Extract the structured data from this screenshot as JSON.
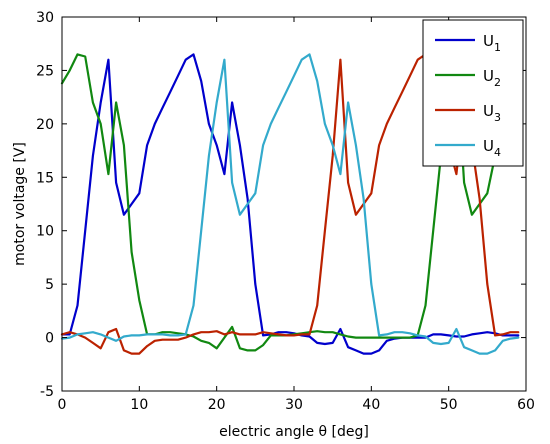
{
  "chart_data": {
    "type": "line",
    "title": "",
    "xlabel": "electric angle θ [deg]",
    "ylabel": "motor voltage [V]",
    "xlim": [
      0,
      60
    ],
    "ylim": [
      -5,
      30
    ],
    "xticks": [
      0,
      10,
      20,
      30,
      40,
      50,
      60
    ],
    "yticks": [
      -5,
      0,
      5,
      10,
      15,
      20,
      25,
      30
    ],
    "grid": false,
    "legend_position": "top-right",
    "series": [
      {
        "name": "U",
        "subscript": "1",
        "color": "#0000cc",
        "x": [
          0,
          1,
          2,
          3,
          4,
          5,
          6,
          7,
          8,
          9,
          10,
          11,
          12,
          13,
          14,
          15,
          16,
          17,
          18,
          19,
          20,
          21,
          22,
          23,
          24,
          25,
          26,
          27,
          28,
          29,
          30,
          31,
          32,
          33,
          34,
          35,
          36,
          37,
          38,
          39,
          40,
          41,
          42,
          43,
          44,
          45,
          46,
          47,
          48,
          49,
          50,
          51,
          52,
          53,
          54,
          55,
          56,
          57,
          58,
          59
        ],
        "y": [
          0.3,
          0.3,
          3,
          10,
          17,
          22,
          26,
          14.5,
          11.5,
          12.5,
          13.5,
          18,
          20,
          21.5,
          23,
          24.5,
          26,
          26.5,
          24,
          20,
          18,
          15.3,
          22,
          18,
          13,
          5,
          0.2,
          0.3,
          0.5,
          0.5,
          0.4,
          0.2,
          0.1,
          -0.5,
          -0.6,
          -0.5,
          0.8,
          -0.9,
          -1.2,
          -1.5,
          -1.5,
          -1.2,
          -0.3,
          -0.1,
          0,
          0,
          0,
          0,
          0.3,
          0.3,
          0.2,
          0.1,
          0.1,
          0.3,
          0.4,
          0.5,
          0.4,
          0.2,
          0.2,
          0.2
        ]
      },
      {
        "name": "U",
        "subscript": "2",
        "color": "#118811",
        "x": [
          0,
          1,
          2,
          3,
          4,
          5,
          6,
          7,
          8,
          9,
          10,
          11,
          12,
          13,
          14,
          15,
          16,
          17,
          18,
          19,
          20,
          21,
          22,
          23,
          24,
          25,
          26,
          27,
          28,
          29,
          30,
          31,
          32,
          33,
          34,
          35,
          36,
          37,
          38,
          39,
          40,
          41,
          42,
          43,
          44,
          45,
          46,
          47,
          48,
          49,
          50,
          51,
          52,
          53,
          54,
          55,
          56,
          57,
          58,
          59
        ],
        "y": [
          23.8,
          25,
          26.5,
          26.3,
          22,
          20,
          15.3,
          22,
          18,
          8,
          3.5,
          0.3,
          0.3,
          0.5,
          0.5,
          0.4,
          0.3,
          0.1,
          -0.3,
          -0.5,
          -1,
          0,
          1,
          -1,
          -1.2,
          -1.2,
          -0.7,
          0.2,
          0.2,
          0.2,
          0.3,
          0.4,
          0.5,
          0.6,
          0.5,
          0.5,
          0.3,
          0.1,
          0,
          0,
          0,
          0,
          0,
          0,
          0,
          0,
          0.2,
          3,
          10,
          17,
          22,
          26,
          14.5,
          11.5,
          12.5,
          13.5,
          17,
          19,
          21,
          22
        ]
      },
      {
        "name": "U",
        "subscript": "3",
        "color": "#bb2200",
        "x": [
          0,
          1,
          2,
          3,
          4,
          5,
          6,
          7,
          8,
          9,
          10,
          11,
          12,
          13,
          14,
          15,
          16,
          17,
          18,
          19,
          20,
          21,
          22,
          23,
          24,
          25,
          26,
          27,
          28,
          29,
          30,
          31,
          32,
          33,
          34,
          35,
          36,
          37,
          38,
          39,
          40,
          41,
          42,
          43,
          44,
          45,
          46,
          47,
          48,
          49,
          50,
          51,
          52,
          53,
          54,
          55,
          56,
          57,
          58,
          59
        ],
        "y": [
          0.3,
          0.5,
          0.3,
          0,
          -0.5,
          -1,
          0.5,
          0.8,
          -1.2,
          -1.5,
          -1.5,
          -0.8,
          -0.3,
          -0.2,
          -0.2,
          -0.2,
          0,
          0.3,
          0.5,
          0.5,
          0.6,
          0.3,
          0.5,
          0.3,
          0.3,
          0.3,
          0.5,
          0.4,
          0.3,
          0.2,
          0.2,
          0.3,
          0.3,
          3,
          10,
          17,
          26,
          14.5,
          11.5,
          12.5,
          13.5,
          18,
          20,
          21.5,
          23,
          24.5,
          26,
          26.5,
          24,
          20,
          18,
          15.3,
          22,
          18,
          13,
          5,
          0.2,
          0.3,
          0.5,
          0.5
        ]
      },
      {
        "name": "U",
        "subscript": "4",
        "color": "#33aacc",
        "x": [
          0,
          1,
          2,
          3,
          4,
          5,
          6,
          7,
          8,
          9,
          10,
          11,
          12,
          13,
          14,
          15,
          16,
          17,
          18,
          19,
          20,
          21,
          22,
          23,
          24,
          25,
          26,
          27,
          28,
          29,
          30,
          31,
          32,
          33,
          34,
          35,
          36,
          37,
          38,
          39,
          40,
          41,
          42,
          43,
          44,
          45,
          46,
          47,
          48,
          49,
          50,
          51,
          52,
          53,
          54,
          55,
          56,
          57,
          58,
          59
        ],
        "y": [
          -0.1,
          0,
          0.3,
          0.4,
          0.5,
          0.3,
          0,
          -0.3,
          0.1,
          0.2,
          0.2,
          0.3,
          0.3,
          0.3,
          0.2,
          0.2,
          0.3,
          3,
          10,
          17,
          22,
          26,
          14.5,
          11.5,
          12.5,
          13.5,
          18,
          20,
          21.5,
          23,
          24.5,
          26,
          26.5,
          24,
          20,
          18,
          15.3,
          22,
          18,
          13,
          5,
          0.2,
          0.3,
          0.5,
          0.5,
          0.4,
          0.2,
          0.1,
          -0.5,
          -0.6,
          -0.5,
          0.8,
          -0.9,
          -1.2,
          -1.5,
          -1.5,
          -1.2,
          -0.3,
          -0.1,
          0
        ]
      }
    ]
  }
}
